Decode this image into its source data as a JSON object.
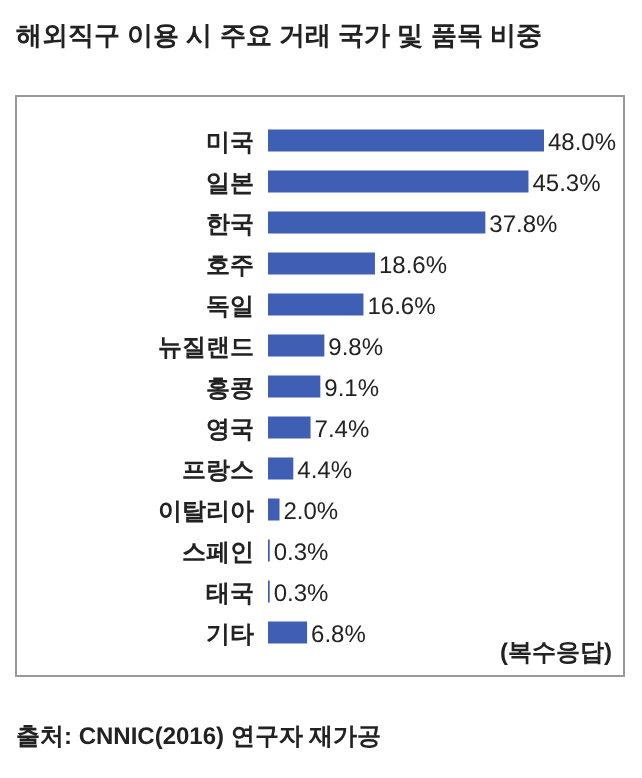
{
  "chart_data": {
    "type": "bar",
    "orientation": "horizontal",
    "title": "해외직구 이용 시 주요 거래 국가 및 품목 비중",
    "categories": [
      "미국",
      "일본",
      "한국",
      "호주",
      "독일",
      "뉴질랜드",
      "홍콩",
      "영국",
      "프랑스",
      "이탈리아",
      "스페인",
      "태국",
      "기타"
    ],
    "values": [
      48.0,
      45.3,
      37.8,
      18.6,
      16.6,
      9.8,
      9.1,
      7.4,
      4.4,
      2.0,
      0.3,
      0.3,
      6.8
    ],
    "value_labels": [
      "48.0%",
      "45.3%",
      "37.8%",
      "18.6%",
      "16.6%",
      "9.8%",
      "9.1%",
      "7.4%",
      "4.4%",
      "2.0%",
      "0.3%",
      "0.3%",
      "6.8%"
    ],
    "color": "#3f5fb5",
    "annotations": [
      "(복수응답)",
      "출처: CNNIC(2016) 연구자 재가공"
    ]
  }
}
